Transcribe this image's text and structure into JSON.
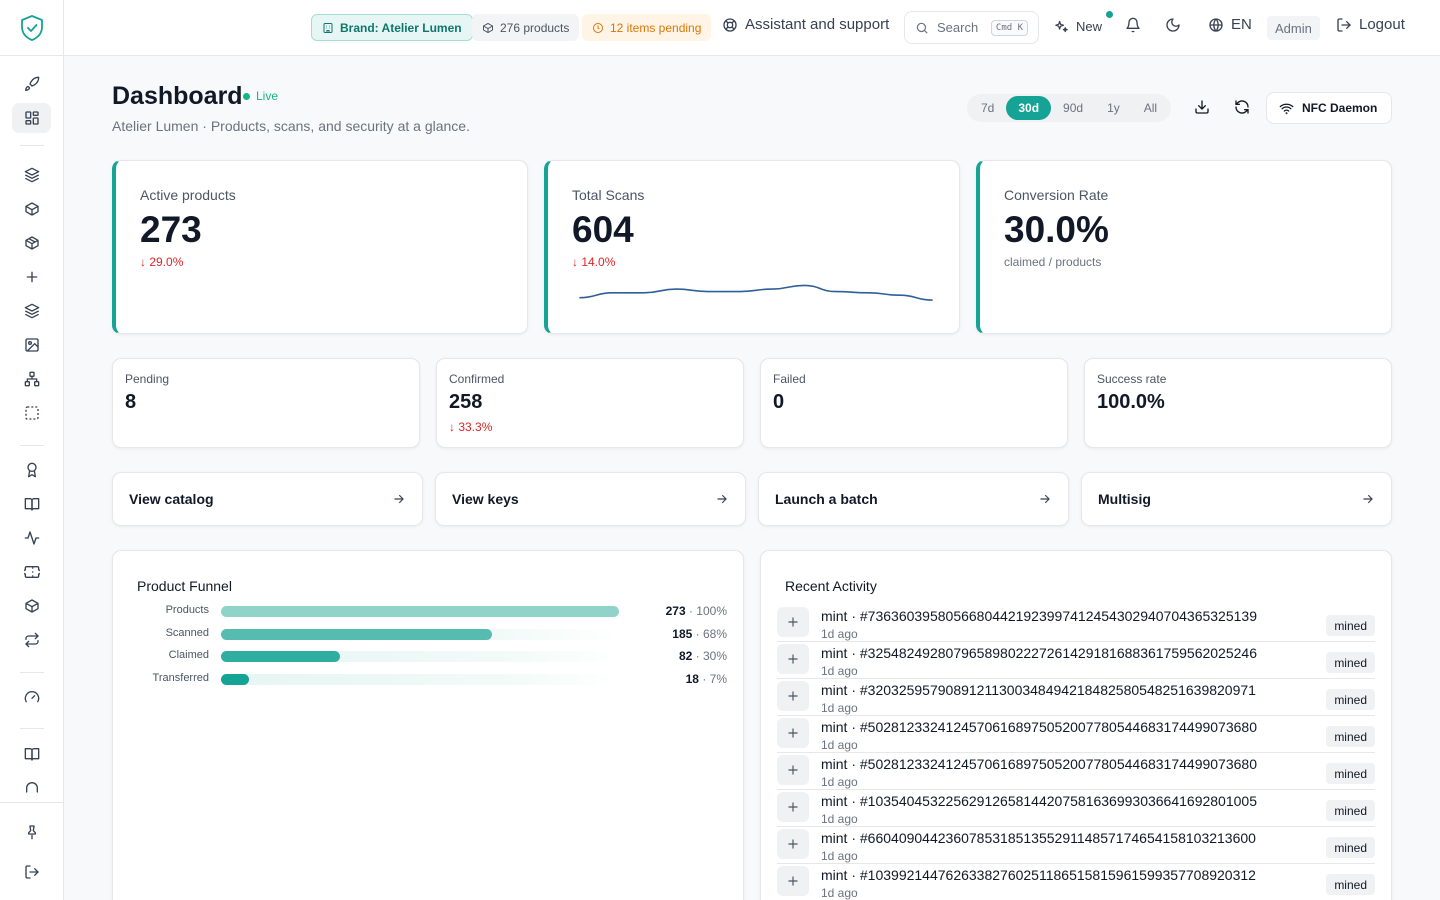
{
  "topbar": {
    "brand_chip": "Brand: Atelier Lumen",
    "products_chip": "276 products",
    "pending_chip": "12 items pending",
    "assistant_label": "Assistant and support",
    "search_placeholder": "Search",
    "search_shortcut": "Cmd K",
    "new_label": "New",
    "language": "EN",
    "role": "Admin",
    "logout_label": "Logout"
  },
  "header": {
    "title": "Dashboard",
    "status": "Live",
    "subtitle": "Atelier Lumen · Products, scans, and security at a glance.",
    "ranges": [
      "7d",
      "30d",
      "90d",
      "1y",
      "All"
    ],
    "active_range": "30d",
    "nfc_label": "NFC Daemon"
  },
  "kpis": [
    {
      "label": "Active products",
      "value": "273",
      "delta": "↓ 29.0%"
    },
    {
      "label": "Total Scans",
      "value": "604",
      "delta": "↓ 14.0%"
    },
    {
      "label": "Conversion Rate",
      "value": "30.0%",
      "note": "claimed / products"
    }
  ],
  "scan_trend": [
    40,
    44,
    44,
    47,
    45,
    45,
    47,
    50,
    45,
    44,
    42,
    38
  ],
  "mini_stats": [
    {
      "label": "Pending",
      "value": "8",
      "delta": ""
    },
    {
      "label": "Confirmed",
      "value": "258",
      "delta": "↓ 33.3%"
    },
    {
      "label": "Failed",
      "value": "0",
      "delta": ""
    },
    {
      "label": "Success rate",
      "value": "100.0%",
      "delta": ""
    }
  ],
  "actions": [
    {
      "label": "View catalog"
    },
    {
      "label": "View keys"
    },
    {
      "label": "Launch a batch"
    },
    {
      "label": "Multisig"
    }
  ],
  "funnel": {
    "title": "Product Funnel",
    "rows": [
      {
        "label": "Products",
        "count": "273",
        "pct": "100%",
        "fraction": 1.0
      },
      {
        "label": "Scanned",
        "count": "185",
        "pct": "68%",
        "fraction": 0.68
      },
      {
        "label": "Claimed",
        "count": "82",
        "pct": "30%",
        "fraction": 0.3
      },
      {
        "label": "Transferred",
        "count": "18",
        "pct": "7%",
        "fraction": 0.07
      }
    ],
    "colors": [
      "#8fd3c9",
      "#57bcb0",
      "#2fae9f",
      "#14a394"
    ]
  },
  "activity": {
    "title": "Recent Activity",
    "items": [
      {
        "title": "mint · #73636039580566804421923997412454302940704365325139",
        "time": "1d ago",
        "status": "mined"
      },
      {
        "title": "mint · #32548249280796589802227261429181688361759562025246",
        "time": "1d ago",
        "status": "mined"
      },
      {
        "title": "mint · #32032595790891211300348494218482580548251639820971",
        "time": "1d ago",
        "status": "mined"
      },
      {
        "title": "mint · #50281233241245706168975052007780544683174499073680",
        "time": "1d ago",
        "status": "mined"
      },
      {
        "title": "mint · #50281233241245706168975052007780544683174499073680",
        "time": "1d ago",
        "status": "mined"
      },
      {
        "title": "mint · #10354045322562912658144207581636993036641692801005",
        "time": "1d ago",
        "status": "mined"
      },
      {
        "title": "mint · #66040904423607853185135529114857174654158103213600",
        "time": "1d ago",
        "status": "mined"
      },
      {
        "title": "mint · #10399214476263382760251186515815961599357708920312",
        "time": "1d ago",
        "status": "mined"
      }
    ]
  },
  "colors": {
    "accent": "#14a394",
    "danger": "#dc2626",
    "live": "#10b981",
    "warning": "#d97706"
  },
  "icons": {
    "sidebar": [
      "rocket-icon",
      "grid-icon",
      "layers-icon",
      "box-icon",
      "package-icon",
      "plus-icon",
      "layers-stack-icon",
      "image-icon",
      "network-icon",
      "selection-icon",
      "award-icon",
      "book-icon",
      "activity-icon",
      "ticket-icon",
      "package-check-icon",
      "repeat-icon",
      "gauge-icon",
      "book-open-icon",
      "headset-icon",
      "pin-icon",
      "logout-icon"
    ]
  }
}
